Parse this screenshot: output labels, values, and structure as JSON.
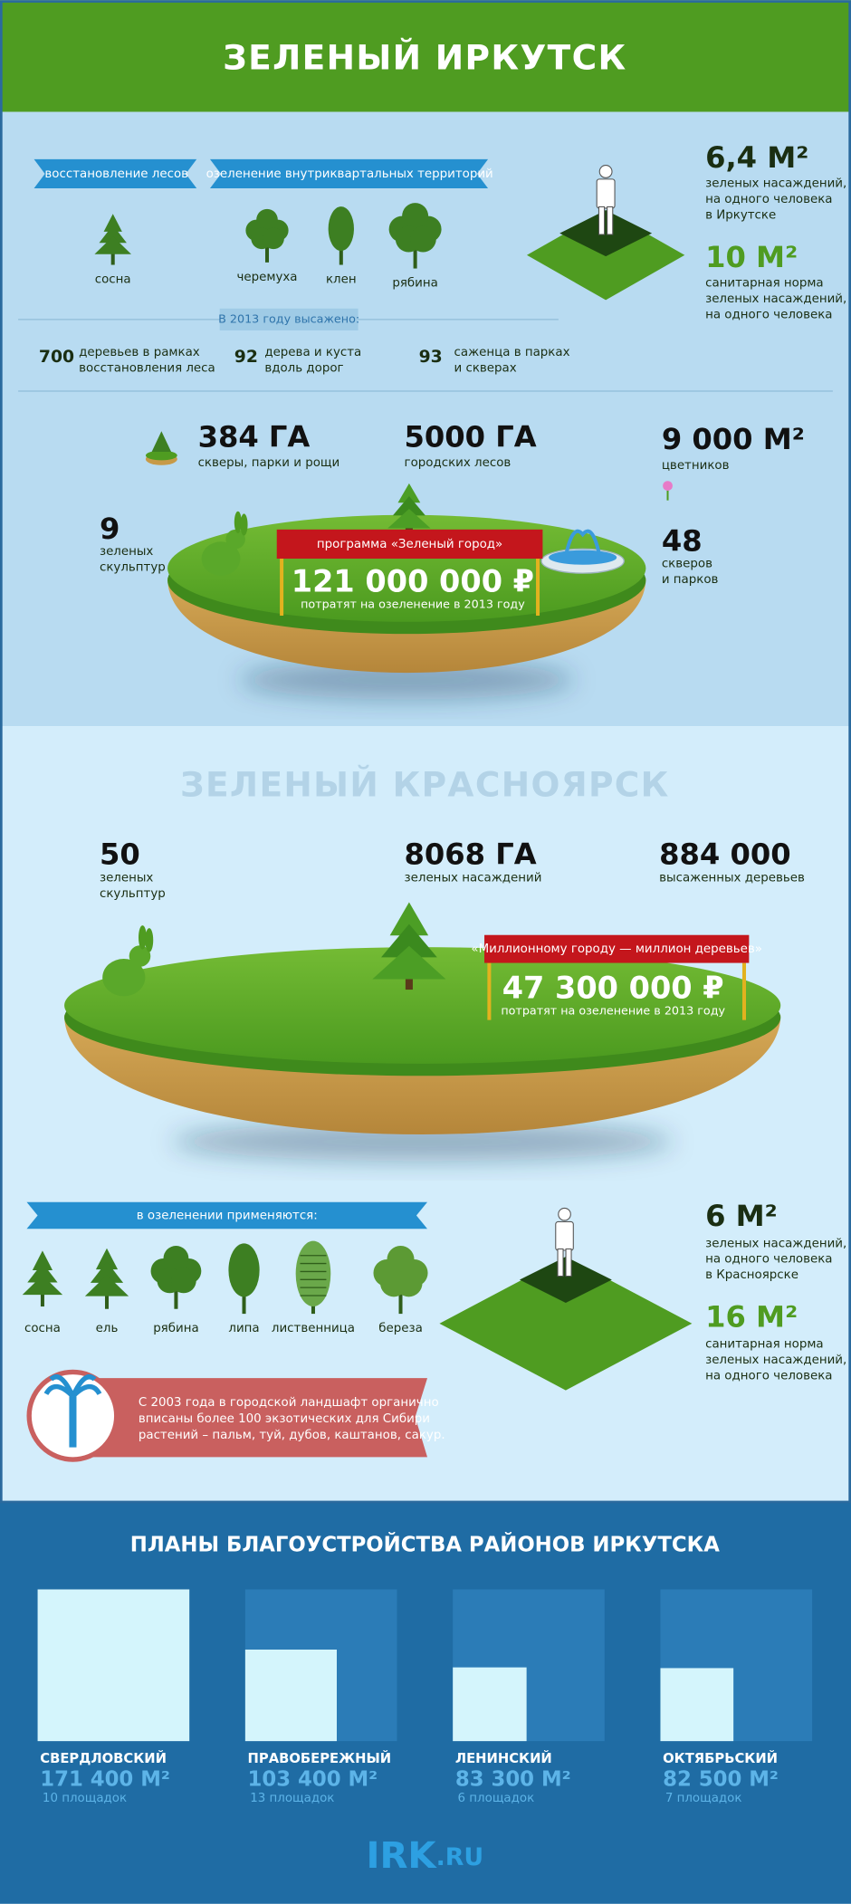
{
  "irkutsk": {
    "title": "ЗЕЛЕНЫЙ ИРКУТСК",
    "tags": [
      "восстановление лесов",
      "озеленение внутриквартальных территорий"
    ],
    "trees": [
      "сосна",
      "черемуха",
      "клен",
      "рябина"
    ],
    "planted_title": "В 2013 году высажено:",
    "planted": [
      {
        "number": "700",
        "text": [
          "деревьев в рамках",
          "восстановления леса"
        ]
      },
      {
        "number": "92",
        "text": [
          "дерева и куста",
          "вдоль дорог"
        ]
      },
      {
        "number": "93",
        "text": [
          "саженца в парках",
          "и скверах"
        ]
      }
    ],
    "norms": [
      {
        "value": "6,4 М²",
        "text": [
          "зеленых насаждений,",
          "на одного человека",
          "в Иркутске"
        ]
      },
      {
        "value": "10 М²",
        "text": [
          "санитарная норма",
          "зеленых насаждений,",
          "на одного человека"
        ]
      }
    ],
    "stats": [
      {
        "value": "384 ГА",
        "text": [
          "скверы, парки и рощи"
        ]
      },
      {
        "value": "5000 ГА",
        "text": [
          "городских лесов"
        ]
      },
      {
        "value": "9 000 М²",
        "text": [
          "цветников"
        ]
      },
      {
        "value": "9",
        "text": [
          "зеленых",
          "скульптур"
        ]
      },
      {
        "value": "48",
        "text": [
          "скверов",
          "и парков"
        ]
      }
    ],
    "program": {
      "name": "программа «Зеленый город»",
      "amount": "121 000 000 ₽",
      "text": "потратят на озеленение  в 2013 году"
    }
  },
  "krasnoyarsk": {
    "title": "ЗЕЛЕНЫЙ КРАСНОЯРСК",
    "stats": [
      {
        "value": "50",
        "text": [
          "зеленых",
          "скульптур"
        ]
      },
      {
        "value": "8068 ГА",
        "text": [
          "зеленых насаждений"
        ]
      },
      {
        "value": "884 000",
        "text": [
          "высаженных деревьев"
        ]
      }
    ],
    "program": {
      "name": "«Миллионному городу — миллион деревьев»",
      "amount": "47 300 000 ₽",
      "text": "потратят на озеленение  в 2013 году"
    },
    "tag": "в озеленении применяются:",
    "trees": [
      "сосна",
      "ель",
      "рябина",
      "липа",
      "лиственница",
      "береза"
    ],
    "note": [
      "С 2003 года в городской ландшафт органично",
      "вписаны более 100 экзотических для Сибири",
      "растений – пальм, туй, дубов, каштанов, сакур."
    ],
    "norms": [
      {
        "value": "6 М²",
        "text": [
          "зеленых насаждений,",
          "на одного человека",
          "в Красноярске"
        ]
      },
      {
        "value": "16 М²",
        "text": [
          "санитарная норма",
          "зеленых насаждений,",
          "на одного человека"
        ]
      }
    ]
  },
  "districts": {
    "title": "ПЛАНЫ БЛАГОУСТРОЙСТВА РАЙОНОВ ИРКУТСКА",
    "items": [
      {
        "name": "СВЕРДЛОВСКИЙ",
        "area": 171400,
        "area_label": "171 400 М²",
        "sites": "10 площадок"
      },
      {
        "name": "ПРАВОБЕРЕЖНЫЙ",
        "area": 103400,
        "area_label": "103 400 М²",
        "sites": "13 площадок"
      },
      {
        "name": "ЛЕНИНСКИЙ",
        "area": 83300,
        "area_label": "83 300 М²",
        "sites": "6 площадок"
      },
      {
        "name": "ОКТЯБРЬСКИЙ",
        "area": 82500,
        "area_label": "82 500 М²",
        "sites": "7 площадок"
      }
    ]
  },
  "logo": {
    "name": "IRK",
    "domain": ".RU"
  }
}
